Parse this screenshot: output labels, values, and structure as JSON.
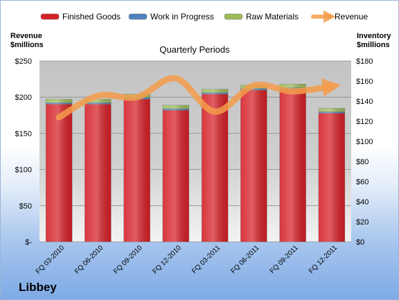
{
  "company": "Libbey",
  "chart_data": {
    "type": "bar",
    "stacked": true,
    "title": "Quarterly Periods",
    "left_axis_title": [
      "Revenue",
      "$millions"
    ],
    "right_axis_title": [
      "Inventory",
      "$millions"
    ],
    "categories": [
      "FQ 03-2010",
      "FQ 06-2010",
      "FQ 09-2010",
      "FQ 12-2010",
      "FQ 03-2011",
      "FQ 06-2011",
      "FQ 09-2011",
      "FQ 12-2011"
    ],
    "left_ylim": [
      0,
      250
    ],
    "left_ticks": [
      "$-",
      "$50",
      "$100",
      "$150",
      "$200",
      "$250"
    ],
    "right_ylim": [
      0,
      180
    ],
    "right_ticks": [
      "$0",
      "$20",
      "$40",
      "$60",
      "$80",
      "$100",
      "$120",
      "$140",
      "$160",
      "$180"
    ],
    "series": [
      {
        "name": "Finished Goods",
        "axis": "right",
        "color": "#d42027",
        "values": [
          137,
          137,
          142,
          131,
          147,
          151,
          152,
          128
        ]
      },
      {
        "name": "Work in Progress",
        "axis": "right",
        "color": "#4f81bd",
        "values": [
          1.5,
          1.5,
          1.5,
          1.5,
          1.5,
          1.5,
          1.5,
          1.5
        ]
      },
      {
        "name": "Raw Materials",
        "axis": "right",
        "color": "#9bbb59",
        "values": [
          3.5,
          3.5,
          3.5,
          3.5,
          3.5,
          3.5,
          3.5,
          3.5
        ]
      },
      {
        "name": "Revenue",
        "axis": "left",
        "type": "line",
        "color": "#f39c4b",
        "values": [
          172,
          202,
          200,
          226,
          180,
          216,
          208,
          215
        ]
      }
    ],
    "grid": true,
    "legend": "top"
  }
}
